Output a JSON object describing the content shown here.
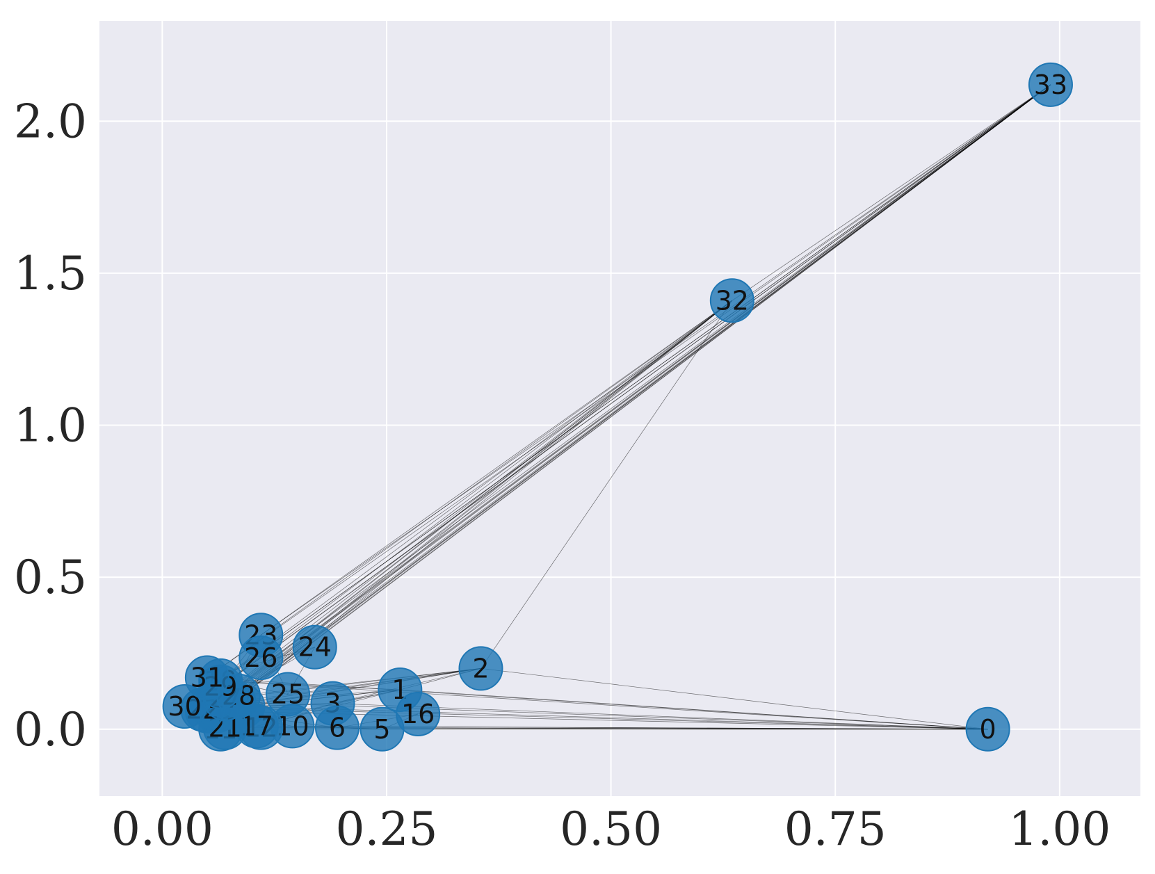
{
  "chart_data": {
    "type": "network",
    "title": "",
    "xlabel": "",
    "ylabel": "",
    "xlim": [
      -0.07,
      1.09
    ],
    "ylim": [
      -0.22,
      2.33
    ],
    "grid": true,
    "colors": {
      "background": "#eaeaf2",
      "grid": "#ffffff",
      "node_fill": "#1f77b4",
      "edge": "#000000"
    },
    "xticks": [
      {
        "value": 0.0,
        "label": "0.00"
      },
      {
        "value": 0.25,
        "label": "0.25"
      },
      {
        "value": 0.5,
        "label": "0.50"
      },
      {
        "value": 0.75,
        "label": "0.75"
      },
      {
        "value": 1.0,
        "label": "1.00"
      }
    ],
    "yticks": [
      {
        "value": 0.0,
        "label": "0.0"
      },
      {
        "value": 0.5,
        "label": "0.5"
      },
      {
        "value": 1.0,
        "label": "1.0"
      },
      {
        "value": 1.5,
        "label": "1.5"
      },
      {
        "value": 2.0,
        "label": "2.0"
      }
    ],
    "nodes": [
      {
        "id": "0",
        "x": 0.92,
        "y": 0.0
      },
      {
        "id": "1",
        "x": 0.265,
        "y": 0.13
      },
      {
        "id": "2",
        "x": 0.355,
        "y": 0.2
      },
      {
        "id": "3",
        "x": 0.19,
        "y": 0.085
      },
      {
        "id": "4",
        "x": 0.06,
        "y": 0.06
      },
      {
        "id": "5",
        "x": 0.245,
        "y": 0.0
      },
      {
        "id": "6",
        "x": 0.195,
        "y": 0.005
      },
      {
        "id": "7",
        "x": 0.09,
        "y": 0.075
      },
      {
        "id": "8",
        "x": 0.08,
        "y": 0.09
      },
      {
        "id": "9",
        "x": 0.07,
        "y": 0.08
      },
      {
        "id": "10",
        "x": 0.145,
        "y": 0.01
      },
      {
        "id": "11",
        "x": 0.065,
        "y": 0.0
      },
      {
        "id": "12",
        "x": 0.11,
        "y": 0.005
      },
      {
        "id": "13",
        "x": 0.07,
        "y": 0.07
      },
      {
        "id": "14",
        "x": 0.05,
        "y": 0.06
      },
      {
        "id": "15",
        "x": 0.055,
        "y": 0.075
      },
      {
        "id": "16",
        "x": 0.285,
        "y": 0.05
      },
      {
        "id": "17",
        "x": 0.105,
        "y": 0.01
      },
      {
        "id": "18",
        "x": 0.065,
        "y": 0.07
      },
      {
        "id": "19",
        "x": 0.065,
        "y": 0.16
      },
      {
        "id": "20",
        "x": 0.06,
        "y": 0.065
      },
      {
        "id": "21",
        "x": 0.07,
        "y": 0.005
      },
      {
        "id": "22",
        "x": 0.045,
        "y": 0.065
      },
      {
        "id": "23",
        "x": 0.11,
        "y": 0.31
      },
      {
        "id": "24",
        "x": 0.17,
        "y": 0.27
      },
      {
        "id": "25",
        "x": 0.14,
        "y": 0.115
      },
      {
        "id": "26",
        "x": 0.11,
        "y": 0.235
      },
      {
        "id": "27",
        "x": 0.07,
        "y": 0.1
      },
      {
        "id": "28",
        "x": 0.085,
        "y": 0.11
      },
      {
        "id": "29",
        "x": 0.065,
        "y": 0.14
      },
      {
        "id": "30",
        "x": 0.025,
        "y": 0.075
      },
      {
        "id": "31",
        "x": 0.05,
        "y": 0.17
      },
      {
        "id": "32",
        "x": 0.635,
        "y": 1.41
      },
      {
        "id": "33",
        "x": 0.99,
        "y": 2.12
      }
    ],
    "edges": [
      [
        "0",
        "1"
      ],
      [
        "0",
        "2"
      ],
      [
        "0",
        "3"
      ],
      [
        "0",
        "4"
      ],
      [
        "0",
        "5"
      ],
      [
        "0",
        "6"
      ],
      [
        "0",
        "7"
      ],
      [
        "0",
        "8"
      ],
      [
        "0",
        "10"
      ],
      [
        "0",
        "11"
      ],
      [
        "0",
        "12"
      ],
      [
        "0",
        "13"
      ],
      [
        "0",
        "17"
      ],
      [
        "0",
        "19"
      ],
      [
        "0",
        "21"
      ],
      [
        "0",
        "31"
      ],
      [
        "1",
        "2"
      ],
      [
        "1",
        "3"
      ],
      [
        "1",
        "7"
      ],
      [
        "1",
        "13"
      ],
      [
        "1",
        "17"
      ],
      [
        "1",
        "19"
      ],
      [
        "1",
        "21"
      ],
      [
        "1",
        "30"
      ],
      [
        "2",
        "3"
      ],
      [
        "2",
        "7"
      ],
      [
        "2",
        "8"
      ],
      [
        "2",
        "9"
      ],
      [
        "2",
        "13"
      ],
      [
        "2",
        "27"
      ],
      [
        "2",
        "28"
      ],
      [
        "2",
        "32"
      ],
      [
        "3",
        "7"
      ],
      [
        "3",
        "12"
      ],
      [
        "3",
        "13"
      ],
      [
        "4",
        "6"
      ],
      [
        "4",
        "10"
      ],
      [
        "5",
        "6"
      ],
      [
        "5",
        "10"
      ],
      [
        "5",
        "16"
      ],
      [
        "6",
        "16"
      ],
      [
        "8",
        "30"
      ],
      [
        "8",
        "32"
      ],
      [
        "8",
        "33"
      ],
      [
        "9",
        "33"
      ],
      [
        "13",
        "33"
      ],
      [
        "14",
        "32"
      ],
      [
        "14",
        "33"
      ],
      [
        "15",
        "32"
      ],
      [
        "15",
        "33"
      ],
      [
        "18",
        "32"
      ],
      [
        "18",
        "33"
      ],
      [
        "19",
        "33"
      ],
      [
        "20",
        "32"
      ],
      [
        "20",
        "33"
      ],
      [
        "22",
        "32"
      ],
      [
        "22",
        "33"
      ],
      [
        "23",
        "25"
      ],
      [
        "23",
        "27"
      ],
      [
        "23",
        "29"
      ],
      [
        "23",
        "32"
      ],
      [
        "23",
        "33"
      ],
      [
        "24",
        "25"
      ],
      [
        "24",
        "27"
      ],
      [
        "24",
        "31"
      ],
      [
        "25",
        "31"
      ],
      [
        "26",
        "29"
      ],
      [
        "26",
        "33"
      ],
      [
        "27",
        "33"
      ],
      [
        "28",
        "31"
      ],
      [
        "28",
        "33"
      ],
      [
        "29",
        "32"
      ],
      [
        "29",
        "33"
      ],
      [
        "30",
        "32"
      ],
      [
        "30",
        "33"
      ],
      [
        "31",
        "32"
      ],
      [
        "31",
        "33"
      ],
      [
        "32",
        "33"
      ]
    ]
  }
}
